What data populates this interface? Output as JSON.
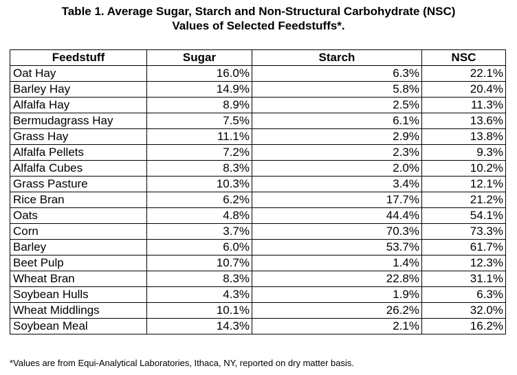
{
  "title": {
    "line1": "Table 1.  Average Sugar, Starch and Non-Structural Carbohydrate (NSC)",
    "line2": "Values of Selected Feedstuffs*."
  },
  "table": {
    "headers": [
      "Feedstuff",
      "Sugar",
      "Starch",
      "NSC"
    ],
    "rows": [
      [
        "Oat Hay",
        "16.0%",
        "6.3%",
        "22.1%"
      ],
      [
        "Barley Hay",
        "14.9%",
        "5.8%",
        "20.4%"
      ],
      [
        "Alfalfa Hay",
        "8.9%",
        "2.5%",
        "11.3%"
      ],
      [
        "Bermudagrass Hay",
        "7.5%",
        "6.1%",
        "13.6%"
      ],
      [
        "Grass Hay",
        "11.1%",
        "2.9%",
        "13.8%"
      ],
      [
        "Alfalfa Pellets",
        "7.2%",
        "2.3%",
        "9.3%"
      ],
      [
        "Alfalfa Cubes",
        "8.3%",
        "2.0%",
        "10.2%"
      ],
      [
        "Grass Pasture",
        "10.3%",
        "3.4%",
        "12.1%"
      ],
      [
        "Rice Bran",
        "6.2%",
        "17.7%",
        "21.2%"
      ],
      [
        "Oats",
        "4.8%",
        "44.4%",
        "54.1%"
      ],
      [
        "Corn",
        "3.7%",
        "70.3%",
        "73.3%"
      ],
      [
        "Barley",
        "6.0%",
        "53.7%",
        "61.7%"
      ],
      [
        "Beet Pulp",
        "10.7%",
        "1.4%",
        "12.3%"
      ],
      [
        "Wheat Bran",
        "8.3%",
        "22.8%",
        "31.1%"
      ],
      [
        "Soybean Hulls",
        "4.3%",
        "1.9%",
        "6.3%"
      ],
      [
        "Wheat Middlings",
        "10.1%",
        "26.2%",
        "32.0%"
      ],
      [
        "Soybean Meal",
        "14.3%",
        "2.1%",
        "16.2%"
      ]
    ]
  },
  "footnote": "*Values are from Equi-Analytical Laboratories, Ithaca, NY, reported on dry matter basis."
}
